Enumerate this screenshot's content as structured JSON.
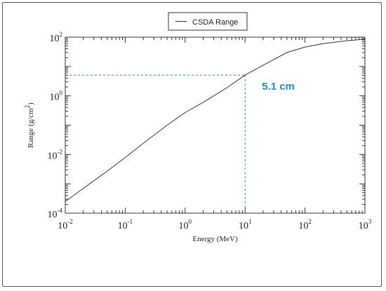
{
  "chart_data": {
    "type": "line",
    "xscale": "log",
    "yscale": "log",
    "xlim": [
      0.01,
      1000
    ],
    "ylim": [
      0.0001,
      100
    ],
    "xlabel": "Energy (MeV)",
    "ylabel": "Range (g/cm2)",
    "ylabel_parts": {
      "base": "Range (g/cm",
      "sup": "2",
      "tail": ")"
    },
    "grid": false,
    "legend_position": "top-center",
    "xticks": [
      {
        "value": 0.01,
        "base": "10",
        "exp": "-2"
      },
      {
        "value": 0.1,
        "base": "10",
        "exp": "-1"
      },
      {
        "value": 1,
        "base": "10",
        "exp": "0"
      },
      {
        "value": 10,
        "base": "10",
        "exp": "1"
      },
      {
        "value": 100,
        "base": "10",
        "exp": "2"
      },
      {
        "value": 1000,
        "base": "10",
        "exp": "3"
      }
    ],
    "yticks": [
      {
        "value": 0.0001,
        "base": "10",
        "exp": "-4"
      },
      {
        "value": 0.01,
        "base": "10",
        "exp": "-2"
      },
      {
        "value": 1,
        "base": "10",
        "exp": "0"
      },
      {
        "value": 100,
        "base": "10",
        "exp": "2"
      }
    ],
    "series": [
      {
        "name": "CSDA Range",
        "color": "#333333",
        "x": [
          0.01,
          0.02,
          0.05,
          0.1,
          0.2,
          0.5,
          1,
          2,
          5,
          10,
          20,
          50,
          100,
          200,
          500,
          1000
        ],
        "y": [
          0.00025,
          0.0007,
          0.0027,
          0.0079,
          0.024,
          0.1,
          0.27,
          0.6,
          1.9,
          5.1,
          11,
          30,
          46,
          60,
          76,
          85
        ]
      }
    ],
    "annotation": {
      "text": "5.1 cm",
      "x": 10,
      "y": 5.1,
      "color": "#1f8fc7",
      "line_style": "dashed"
    }
  }
}
